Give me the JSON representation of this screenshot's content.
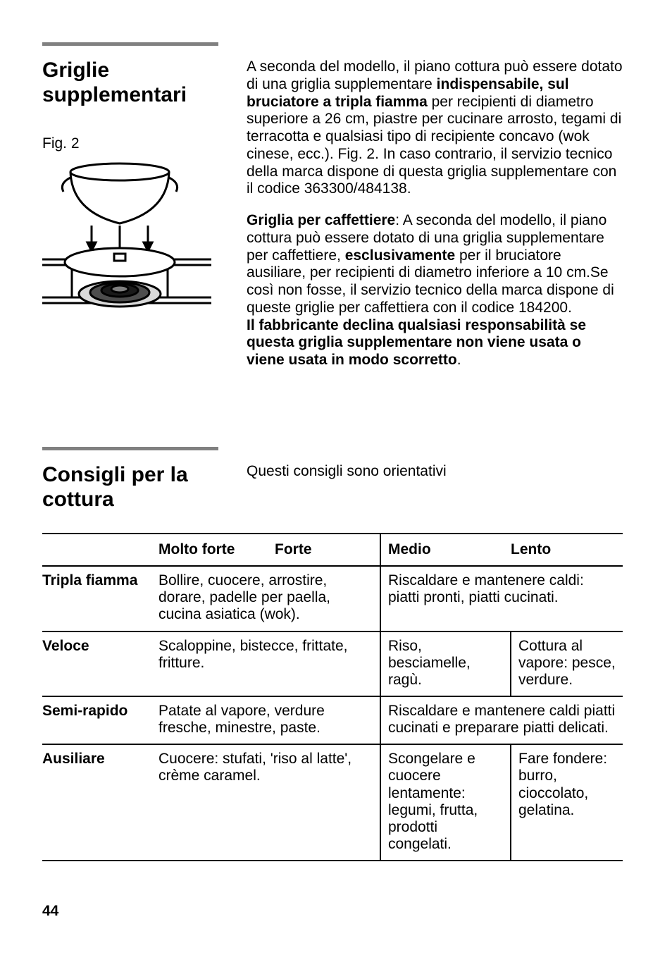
{
  "section1": {
    "title": "Griglie supplementari",
    "fig_label": "Fig. 2",
    "para1_before_bold": "A seconda del modello, il piano cottura può essere dotato di una griglia supplementare ",
    "para1_bold": "indispensabile, sul bruciatore a tripla fiamma",
    "para1_after_bold": " per recipienti di diametro superiore a 26 cm, piastre per cucinare arrosto, tegami di terracotta e qualsiasi tipo di recipiente concavo (wok cinese, ecc.). Fig. 2. In caso contrario, il servizio tecnico della marca dispone di questa griglia supplementare con il codice 363300/484138.",
    "para2_lead_bold": "Griglia per caffettiere",
    "para2_before_excl": ": A seconda del modello, il piano cottura può essere dotato di una griglia supplementare per caffettiere, ",
    "para2_excl_bold": "esclusivamente",
    "para2_after_excl": " per il bruciatore ausiliare, per recipienti di diametro inferiore a 10 cm.Se così non fosse, il servizio tecnico della marca dispone di queste griglie per caffettiera con il codice 184200.",
    "para2_warning_bold": "Il fabbricante declina qualsiasi responsabilità se questa griglia supplementare non viene usata o viene usata in modo scorretto",
    "para2_warning_tail": "."
  },
  "section2": {
    "title": "Consigli per la cottura",
    "note": "Questi consigli sono orientativi"
  },
  "table": {
    "headers": {
      "col0": "",
      "col1": "Molto forte",
      "col2": "Forte",
      "col3": "Medio",
      "col4": "Lento"
    },
    "rows": [
      {
        "label": "Tripla fiamma",
        "c12": "Bollire, cuocere, arrostire, dorare, padelle per paella, cucina asiatica (wok).",
        "c34": "Riscaldare e mantenere caldi: piatti pronti, piatti cucinati.",
        "split34": false
      },
      {
        "label": "Veloce",
        "c12": "Scaloppine, bistecce, frittate, fritture.",
        "c3": "Riso, besciamelle, ragù.",
        "c4": "Cottura al vapore: pesce, verdure.",
        "split34": true
      },
      {
        "label": "Semi-rapido",
        "c12": "Patate al vapore, verdure fresche, minestre, paste.",
        "c34": "Riscaldare e mantenere caldi piatti cucinati e preparare piatti delicati.",
        "split34": false
      },
      {
        "label": "Ausiliare",
        "c12": "Cuocere: stufati, 'riso al latte', crème caramel.",
        "c3": "Scongelare e cuocere lentamente: legumi, frutta, prodotti congelati.",
        "c4": "Fare fondere: burro, cioccolato, gelatina.",
        "split34": true
      }
    ]
  },
  "page_number": "44",
  "colors": {
    "rule_gray": "#808080",
    "text": "#000000",
    "bg": "#ffffff"
  }
}
